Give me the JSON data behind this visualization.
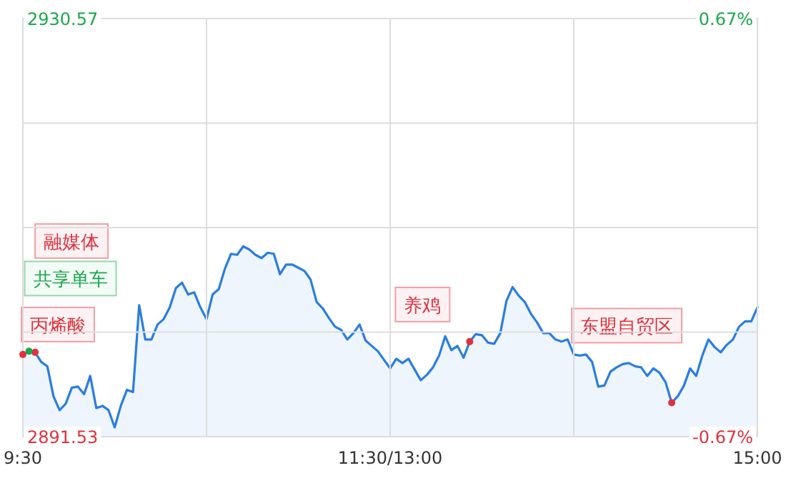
{
  "chart_data": {
    "type": "area",
    "categories": [
      "9:30",
      null,
      null,
      null,
      null,
      null,
      null,
      null,
      null,
      null,
      null,
      null,
      null,
      null,
      null,
      null,
      null,
      null,
      null,
      null,
      null,
      null,
      null,
      null,
      null,
      null,
      null,
      null,
      null,
      null,
      null,
      null,
      null,
      null,
      null,
      null,
      null,
      null,
      null,
      null,
      null,
      null,
      null,
      null,
      null,
      null,
      null,
      null,
      null,
      null,
      null,
      null,
      null,
      null,
      null,
      null,
      null,
      null,
      null,
      null,
      "11:30/13:00",
      null,
      null,
      null,
      null,
      null,
      null,
      null,
      null,
      null,
      null,
      null,
      null,
      null,
      null,
      null,
      null,
      null,
      null,
      null,
      null,
      null,
      null,
      null,
      null,
      null,
      null,
      null,
      null,
      null,
      null,
      null,
      null,
      null,
      null,
      null,
      null,
      null,
      null,
      null,
      null,
      null,
      null,
      null,
      null,
      null,
      null,
      null,
      null,
      null,
      null,
      null,
      null,
      null,
      null,
      null,
      null,
      null,
      null,
      null,
      "15:00"
    ],
    "series": [
      {
        "color": "#2a7de1",
        "values": [
          2899.2,
          2899.5,
          2899.4,
          2898.5,
          2898.1,
          2895.3,
          2894.0,
          2894.6,
          2896.1,
          2896.2,
          2895.5,
          2897.2,
          2894.2,
          2894.4,
          2894.0,
          2892.4,
          2894.4,
          2895.9,
          2895.7,
          2903.8,
          2900.6,
          2900.6,
          2902.0,
          2902.5,
          2903.6,
          2905.4,
          2905.9,
          2904.8,
          2905.0,
          2903.6,
          2902.5,
          2904.8,
          2905.3,
          2907.2,
          2908.6,
          2908.5,
          2909.3,
          2909.0,
          2908.5,
          2908.2,
          2908.7,
          2908.6,
          2906.7,
          2907.6,
          2907.6,
          2907.3,
          2907.0,
          2906.2,
          2904.1,
          2903.5,
          2902.6,
          2901.8,
          2901.5,
          2900.6,
          2901.2,
          2902.0,
          2900.5,
          2900.0,
          2899.5,
          2898.7,
          2897.9,
          2898.8,
          2898.4,
          2898.8,
          2897.8,
          2896.8,
          2897.3,
          2898.0,
          2899.1,
          2900.9,
          2899.6,
          2900.0,
          2898.9,
          2900.4,
          2901.1,
          2901.0,
          2900.3,
          2900.2,
          2901.2,
          2904.2,
          2905.5,
          2904.7,
          2904.1,
          2903.0,
          2902.2,
          2901.2,
          2901.2,
          2900.6,
          2900.4,
          2900.6,
          2899.2,
          2899.1,
          2899.2,
          2898.5,
          2896.2,
          2896.3,
          2897.6,
          2898.0,
          2898.3,
          2898.4,
          2898.1,
          2898.0,
          2897.2,
          2897.9,
          2897.5,
          2896.6,
          2894.7,
          2895.3,
          2896.3,
          2897.9,
          2897.2,
          2899.1,
          2900.6,
          2899.9,
          2899.4,
          2900.1,
          2900.6,
          2901.8,
          2902.3,
          2902.3,
          2903.6
        ]
      }
    ],
    "ylim": [
      2891.53,
      2930.57
    ],
    "yticks": [
      2891.53,
      {
        "value": 2901.29,
        "label": null
      },
      {
        "value": 2911.05,
        "label": null
      },
      {
        "value": 2920.81,
        "label": null
      },
      2930.57
    ],
    "y2lim": [
      -0.67,
      0.67
    ],
    "y2ticks": [
      {
        "value": -0.67,
        "label": "-0.67%"
      },
      {
        "value": 0.67,
        "label": "0.67%"
      }
    ],
    "grid": true,
    "annotations": [
      "融媒体",
      "共享单车",
      "丙烯酸",
      "养鸡",
      "东盟自贸区"
    ]
  }
}
